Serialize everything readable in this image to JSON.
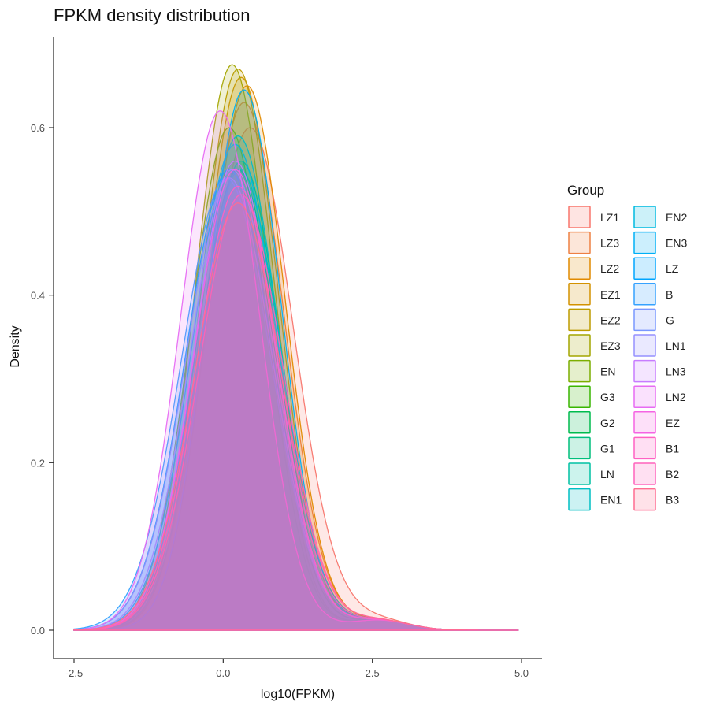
{
  "chart_data": {
    "type": "area",
    "title": "FPKM density distribution",
    "xlabel": "log10(FPKM)",
    "ylabel": "Density",
    "xlim": [
      -2.5,
      5.0
    ],
    "ylim": [
      0.0,
      0.7
    ],
    "xticks": [
      -2.5,
      0.0,
      2.5,
      5.0
    ],
    "yticks": [
      0.0,
      0.2,
      0.4,
      0.6
    ],
    "xtick_labels": [
      "-2.5",
      "0.0",
      "2.5",
      "5.0"
    ],
    "ytick_labels": [
      "0.0",
      "0.2",
      "0.4",
      "0.6"
    ],
    "grid": false,
    "legend": {
      "title": "Group",
      "placement": "right",
      "columns": 2
    },
    "series": [
      {
        "name": "LZ1",
        "color": "#F8766D",
        "mu": 0.45,
        "sd": 0.72,
        "peak": 0.6
      },
      {
        "name": "LZ3",
        "color": "#EE8043",
        "mu": 0.35,
        "sd": 0.66,
        "peak": 0.63
      },
      {
        "name": "LZ2",
        "color": "#E18A00",
        "mu": 0.4,
        "sd": 0.64,
        "peak": 0.65
      },
      {
        "name": "EZ1",
        "color": "#D39200",
        "mu": 0.3,
        "sd": 0.63,
        "peak": 0.66
      },
      {
        "name": "EZ2",
        "color": "#BE9C00",
        "mu": 0.25,
        "sd": 0.62,
        "peak": 0.67
      },
      {
        "name": "EZ3",
        "color": "#A3A500",
        "mu": 0.15,
        "sd": 0.62,
        "peak": 0.675
      },
      {
        "name": "EN",
        "color": "#7CAE00",
        "mu": 0.1,
        "sd": 0.64,
        "peak": 0.6
      },
      {
        "name": "G3",
        "color": "#39B600",
        "mu": 0.2,
        "sd": 0.65,
        "peak": 0.56
      },
      {
        "name": "G2",
        "color": "#00BB4E",
        "mu": 0.25,
        "sd": 0.66,
        "peak": 0.55
      },
      {
        "name": "G1",
        "color": "#00BF7D",
        "mu": 0.3,
        "sd": 0.66,
        "peak": 0.56
      },
      {
        "name": "LN",
        "color": "#00C1A3",
        "mu": 0.28,
        "sd": 0.68,
        "peak": 0.55
      },
      {
        "name": "EN1",
        "color": "#00BFC4",
        "mu": 0.25,
        "sd": 0.68,
        "peak": 0.59
      },
      {
        "name": "EN2",
        "color": "#00BAE0",
        "mu": 0.2,
        "sd": 0.7,
        "peak": 0.58
      },
      {
        "name": "EN3",
        "color": "#00B0F6",
        "mu": 0.35,
        "sd": 0.62,
        "peak": 0.645
      },
      {
        "name": "LZ",
        "color": "#00A5FF",
        "mu": 0.1,
        "sd": 0.72,
        "peak": 0.55
      },
      {
        "name": "B",
        "color": "#35A2FF",
        "mu": 0.05,
        "sd": 0.74,
        "peak": 0.54
      },
      {
        "name": "G",
        "color": "#7997FF",
        "mu": 0.1,
        "sd": 0.72,
        "peak": 0.54
      },
      {
        "name": "LN1",
        "color": "#9590FF",
        "mu": 0.15,
        "sd": 0.7,
        "peak": 0.55
      },
      {
        "name": "LN3",
        "color": "#C77CFF",
        "mu": 0.2,
        "sd": 0.68,
        "peak": 0.56
      },
      {
        "name": "LN2",
        "color": "#E76BF3",
        "mu": -0.05,
        "sd": 0.66,
        "peak": 0.62
      },
      {
        "name": "EZ",
        "color": "#F564E3",
        "mu": 0.2,
        "sd": 0.68,
        "peak": 0.55
      },
      {
        "name": "B1",
        "color": "#FF61C3",
        "mu": 0.25,
        "sd": 0.69,
        "peak": 0.53
      },
      {
        "name": "B2",
        "color": "#FF62BC",
        "mu": 0.3,
        "sd": 0.7,
        "peak": 0.52
      },
      {
        "name": "B3",
        "color": "#FF6C91",
        "mu": 0.25,
        "sd": 0.72,
        "peak": 0.51
      }
    ]
  }
}
